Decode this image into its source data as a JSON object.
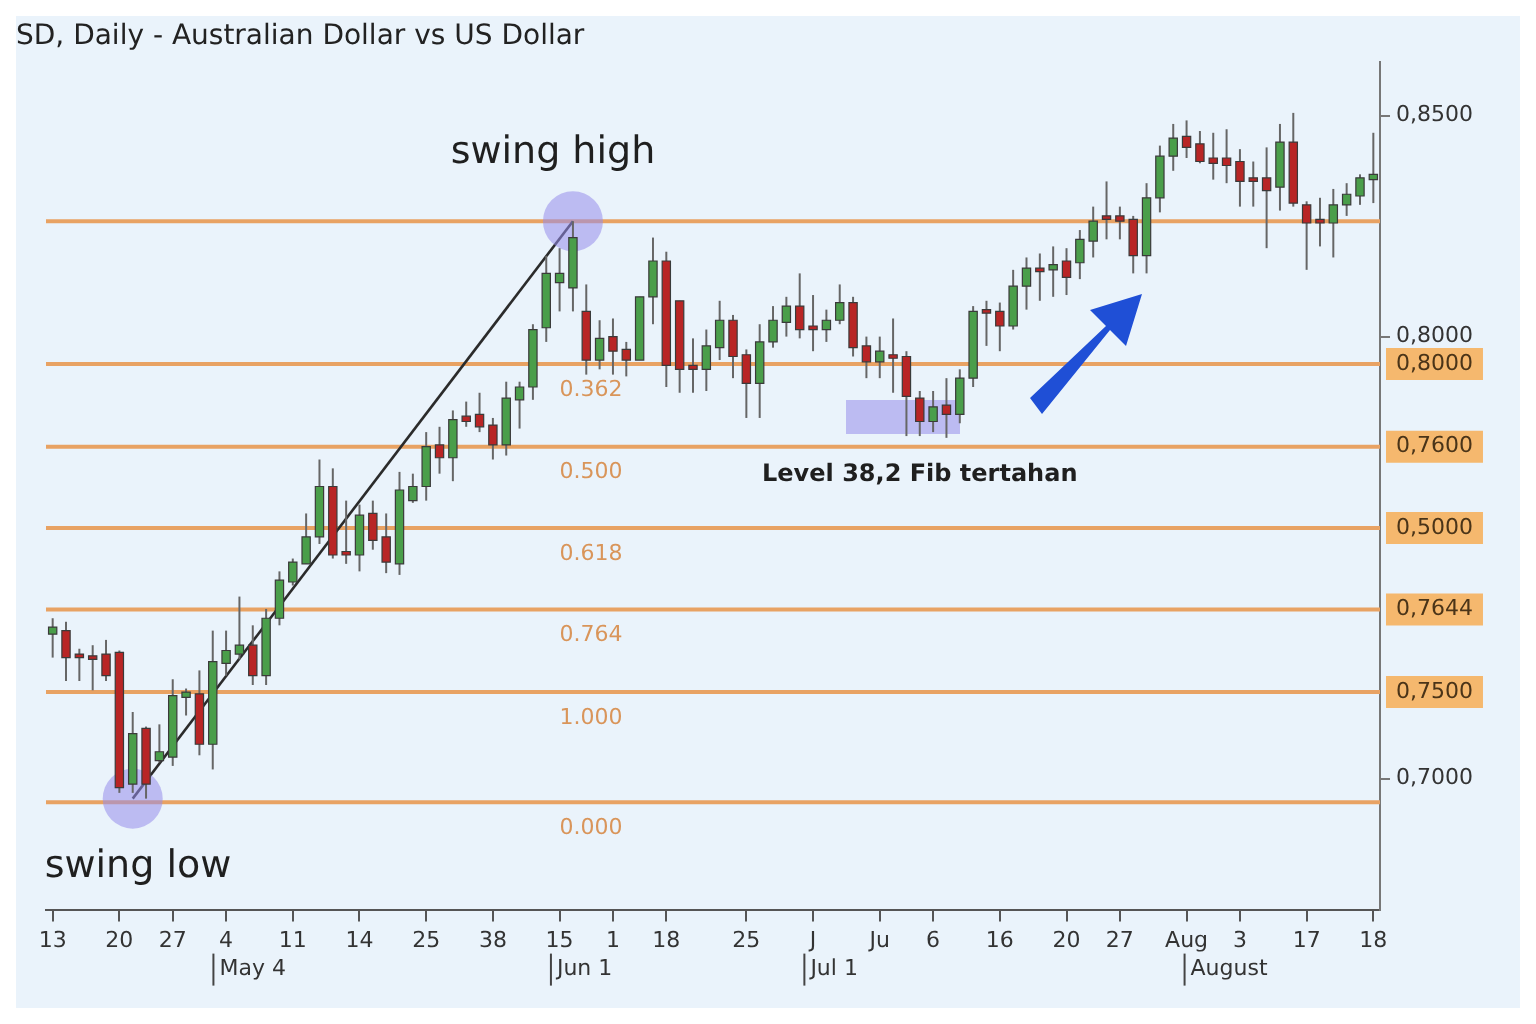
{
  "chart_data": {
    "type": "candlestick",
    "title": "SD, Daily - Australian Dollar vs US Dollar",
    "categories": [
      "13",
      null,
      null,
      null,
      null,
      "20",
      null,
      null,
      null,
      "27",
      null,
      null,
      null,
      "4",
      null,
      null,
      null,
      null,
      "11",
      null,
      null,
      null,
      null,
      "14",
      null,
      null,
      null,
      null,
      "25",
      null,
      null,
      null,
      null,
      "38",
      null,
      null,
      null,
      null,
      "15",
      null,
      null,
      null,
      "1",
      null,
      null,
      null,
      "18",
      null,
      null,
      null,
      null,
      null,
      "25",
      null,
      null,
      null,
      null,
      "J",
      null,
      null,
      null,
      null,
      "Ju",
      null,
      null,
      null,
      "6",
      null,
      null,
      null,
      null,
      "16",
      null,
      null,
      null,
      null,
      "20",
      null,
      null,
      null,
      "27",
      null,
      null,
      null,
      null,
      "Aug",
      null,
      null,
      null,
      "3",
      null,
      null,
      null,
      null,
      "17",
      null,
      null,
      null,
      null,
      "18"
    ],
    "ohlc": [
      [
        0.7327,
        0.7363,
        0.7274,
        0.7343
      ],
      [
        0.7335,
        0.7355,
        0.7221,
        0.7274
      ],
      [
        0.7282,
        0.7294,
        0.7221,
        0.7274
      ],
      [
        0.7278,
        0.7302,
        0.72,
        0.727
      ],
      [
        0.7282,
        0.7314,
        0.7221,
        0.7233
      ],
      [
        0.7286,
        0.729,
        0.6968,
        0.698
      ],
      [
        0.6988,
        0.7151,
        0.6968,
        0.7102
      ],
      [
        0.7114,
        0.7118,
        0.6955,
        0.6988
      ],
      [
        0.7041,
        0.7123,
        0.7037,
        0.7061
      ],
      [
        0.7049,
        0.7225,
        0.7029,
        0.7188
      ],
      [
        0.7184,
        0.7204,
        0.7143,
        0.7196
      ],
      [
        0.7192,
        0.7245,
        0.7053,
        0.7078
      ],
      [
        0.7078,
        0.7335,
        0.7021,
        0.7265
      ],
      [
        0.7261,
        0.7335,
        0.7233,
        0.729
      ],
      [
        0.7282,
        0.7412,
        0.727,
        0.7302
      ],
      [
        0.7302,
        0.7347,
        0.7212,
        0.7233
      ],
      [
        0.7233,
        0.7384,
        0.7212,
        0.7363
      ],
      [
        0.7363,
        0.7469,
        0.7347,
        0.7449
      ],
      [
        0.7445,
        0.7498,
        0.7437,
        0.749
      ],
      [
        0.7486,
        0.76,
        0.7486,
        0.7547
      ],
      [
        0.7547,
        0.7722,
        0.7531,
        0.7661
      ],
      [
        0.7661,
        0.7702,
        0.7498,
        0.7506
      ],
      [
        0.7514,
        0.7629,
        0.7486,
        0.7506
      ],
      [
        0.7506,
        0.762,
        0.7469,
        0.7596
      ],
      [
        0.76,
        0.7629,
        0.7518,
        0.7539
      ],
      [
        0.7547,
        0.76,
        0.7465,
        0.749
      ],
      [
        0.7486,
        0.7694,
        0.7461,
        0.7653
      ],
      [
        0.7629,
        0.769,
        0.7624,
        0.7661
      ],
      [
        0.7661,
        0.7784,
        0.7629,
        0.7751
      ],
      [
        0.7755,
        0.7796,
        0.769,
        0.7726
      ],
      [
        0.7726,
        0.7833,
        0.7673,
        0.7812
      ],
      [
        0.782,
        0.7853,
        0.7796,
        0.7808
      ],
      [
        0.7824,
        0.7873,
        0.7784,
        0.7796
      ],
      [
        0.78,
        0.7816,
        0.7722,
        0.7755
      ],
      [
        0.7755,
        0.7898,
        0.7731,
        0.7861
      ],
      [
        0.7857,
        0.7898,
        0.7792,
        0.7886
      ],
      [
        0.7886,
        0.8028,
        0.7857,
        0.8016
      ],
      [
        0.802,
        0.8183,
        0.7988,
        0.8143
      ],
      [
        0.8122,
        0.82,
        0.8057,
        0.8143
      ],
      [
        0.811,
        0.8261,
        0.8057,
        0.8224
      ],
      [
        0.8057,
        0.8118,
        0.7914,
        0.7947
      ],
      [
        0.7947,
        0.8037,
        0.7926,
        0.7996
      ],
      [
        0.8,
        0.8041,
        0.7914,
        0.7967
      ],
      [
        0.7971,
        0.7988,
        0.791,
        0.7947
      ],
      [
        0.7947,
        0.809,
        0.7947,
        0.809
      ],
      [
        0.809,
        0.8224,
        0.8028,
        0.8171
      ],
      [
        0.8171,
        0.8192,
        0.7886,
        0.7935
      ],
      [
        0.8081,
        0.8081,
        0.7873,
        0.7926
      ],
      [
        0.7935,
        0.7996,
        0.7873,
        0.7926
      ],
      [
        0.7926,
        0.8016,
        0.7877,
        0.7979
      ],
      [
        0.7975,
        0.8081,
        0.7947,
        0.8037
      ],
      [
        0.8037,
        0.8049,
        0.7906,
        0.7955
      ],
      [
        0.7959,
        0.7971,
        0.7816,
        0.7894
      ],
      [
        0.7894,
        0.8028,
        0.7816,
        0.7988
      ],
      [
        0.7988,
        0.8069,
        0.7975,
        0.8037
      ],
      [
        0.8032,
        0.809,
        0.8,
        0.8069
      ],
      [
        0.8069,
        0.8143,
        0.7996,
        0.8016
      ],
      [
        0.8024,
        0.8094,
        0.7967,
        0.8016
      ],
      [
        0.8016,
        0.8061,
        0.7988,
        0.8037
      ],
      [
        0.8037,
        0.8118,
        0.8028,
        0.8077
      ],
      [
        0.8077,
        0.809,
        0.7955,
        0.7975
      ],
      [
        0.7979,
        0.8,
        0.7906,
        0.7943
      ],
      [
        0.7943,
        0.8,
        0.7906,
        0.7967
      ],
      [
        0.7959,
        0.8041,
        0.7873,
        0.7951
      ],
      [
        0.7955,
        0.7967,
        0.7775,
        0.7865
      ],
      [
        0.7861,
        0.7877,
        0.7775,
        0.7808
      ],
      [
        0.7808,
        0.7877,
        0.7784,
        0.7841
      ],
      [
        0.7845,
        0.7906,
        0.7771,
        0.7824
      ],
      [
        0.7824,
        0.7926,
        0.7804,
        0.7906
      ],
      [
        0.7906,
        0.8069,
        0.7886,
        0.8057
      ],
      [
        0.8061,
        0.8081,
        0.7979,
        0.8053
      ],
      [
        0.8057,
        0.8077,
        0.7967,
        0.8024
      ],
      [
        0.8024,
        0.8151,
        0.8016,
        0.8114
      ],
      [
        0.8114,
        0.8179,
        0.8061,
        0.8155
      ],
      [
        0.8155,
        0.8188,
        0.8081,
        0.8147
      ],
      [
        0.8151,
        0.8204,
        0.809,
        0.8163
      ],
      [
        0.8171,
        0.82,
        0.8094,
        0.8134
      ],
      [
        0.8167,
        0.8241,
        0.813,
        0.822
      ],
      [
        0.8216,
        0.8294,
        0.8179,
        0.8261
      ],
      [
        0.8273,
        0.8351,
        0.822,
        0.8265
      ],
      [
        0.8273,
        0.8294,
        0.822,
        0.8261
      ],
      [
        0.8265,
        0.8273,
        0.8143,
        0.8183
      ],
      [
        0.8183,
        0.8347,
        0.8143,
        0.8314
      ],
      [
        0.8314,
        0.8432,
        0.8281,
        0.8408
      ],
      [
        0.8408,
        0.8481,
        0.8375,
        0.8449
      ],
      [
        0.8453,
        0.8489,
        0.8404,
        0.8428
      ],
      [
        0.8436,
        0.8465,
        0.8392,
        0.8396
      ],
      [
        0.8404,
        0.8461,
        0.8355,
        0.8392
      ],
      [
        0.8404,
        0.8469,
        0.8347,
        0.8387
      ],
      [
        0.8396,
        0.8424,
        0.8294,
        0.8351
      ],
      [
        0.8359,
        0.8396,
        0.8294,
        0.8351
      ],
      [
        0.8359,
        0.8428,
        0.82,
        0.833
      ],
      [
        0.8338,
        0.8481,
        0.8285,
        0.844
      ],
      [
        0.844,
        0.8506,
        0.8294,
        0.8302
      ],
      [
        0.8298,
        0.8306,
        0.8151,
        0.8257
      ],
      [
        0.8265,
        0.8314,
        0.8204,
        0.8257
      ],
      [
        0.8257,
        0.8334,
        0.8179,
        0.8298
      ],
      [
        0.8298,
        0.8347,
        0.8273,
        0.8322
      ],
      [
        0.8318,
        0.8367,
        0.8298,
        0.8359
      ],
      [
        0.8355,
        0.8461,
        0.8302,
        0.8367
      ]
    ],
    "colors": [
      "#4a9e4a",
      "#b82525",
      "#b82525",
      "#b82525",
      "#b82525",
      "#b82525",
      "#4a9e4a",
      "#b82525",
      "#4a9e4a",
      "#4a9e4a",
      "#4a9e4a",
      "#b82525",
      "#4a9e4a",
      "#4a9e4a",
      "#4a9e4a",
      "#b82525",
      "#4a9e4a",
      "#4a9e4a",
      "#4a9e4a",
      "#4a9e4a",
      "#4a9e4a",
      "#b82525",
      "#b82525",
      "#4a9e4a",
      "#b82525",
      "#b82525",
      "#4a9e4a",
      "#4a9e4a",
      "#4a9e4a",
      "#b82525",
      "#4a9e4a",
      "#b82525",
      "#b82525",
      "#b82525",
      "#4a9e4a",
      "#4a9e4a",
      "#4a9e4a",
      "#4a9e4a",
      "#4a9e4a",
      "#4a9e4a",
      "#b82525",
      "#4a9e4a",
      "#b82525",
      "#b82525",
      "#4a9e4a",
      "#4a9e4a",
      "#b82525",
      "#b82525",
      "#b82525",
      "#4a9e4a",
      "#4a9e4a",
      "#b82525",
      "#b82525",
      "#4a9e4a",
      "#4a9e4a",
      "#4a9e4a",
      "#b82525",
      "#b82525",
      "#4a9e4a",
      "#4a9e4a",
      "#b82525",
      "#b82525",
      "#4a9e4a",
      "#b82525",
      "#b82525",
      "#b82525",
      "#4a9e4a",
      "#b82525",
      "#4a9e4a",
      "#4a9e4a",
      "#b82525",
      "#b82525",
      "#4a9e4a",
      "#4a9e4a",
      "#b82525",
      "#4a9e4a",
      "#b82525",
      "#4a9e4a",
      "#4a9e4a",
      "#b82525",
      "#b82525",
      "#b82525",
      "#4a9e4a",
      "#4a9e4a",
      "#4a9e4a",
      "#b82525",
      "#b82525",
      "#b82525",
      "#b82525",
      "#b82525",
      "#b82525",
      "#b82525",
      "#4a9e4a",
      "#b82525",
      "#b82525",
      "#b82525",
      "#4a9e4a",
      "#4a9e4a",
      "#4a9e4a",
      "#4a9e4a"
    ],
    "series": [
      {
        "type": "line",
        "color": "#2b2b2b",
        "marker": "circle",
        "values": [
          null,
          null,
          null,
          null,
          null,
          null,
          0.6955,
          null,
          null,
          null,
          null,
          null,
          null,
          null,
          null,
          null,
          null,
          null,
          null,
          null,
          null,
          null,
          null,
          null,
          null,
          null,
          null,
          null,
          null,
          null,
          null,
          null,
          null,
          null,
          null,
          null,
          null,
          null,
          null,
          0.8261,
          null,
          null,
          null,
          null,
          null,
          null,
          null,
          null,
          null,
          null,
          null,
          null,
          null,
          null,
          null,
          null,
          null,
          null,
          null,
          null,
          null,
          null,
          null,
          null,
          null,
          null,
          null,
          null,
          null,
          null,
          null,
          null,
          null,
          null,
          null,
          null,
          null,
          null,
          null,
          null,
          null,
          null,
          null,
          null,
          null,
          null,
          null,
          null,
          null,
          null,
          null,
          null,
          null,
          null,
          null,
          null,
          null,
          null,
          null,
          null
        ]
      }
    ],
    "ylim": [
      0.6704,
      0.8622
    ],
    "yticks": [
      {
        "value": 0.85,
        "label": "0,8500"
      },
      {
        "value": 0.8,
        "label": "0,8000"
      },
      {
        "value": 0.7,
        "label": "0,7000"
      }
    ],
    "grid": false,
    "legend": false,
    "ref_lines": [
      {
        "axis": "y",
        "value": 0.8261,
        "color": "#e8a263"
      },
      {
        "axis": "y",
        "value": 0.7938,
        "color": "#e8a263"
      },
      {
        "axis": "y",
        "value": 0.7751,
        "color": "#e8a263"
      },
      {
        "axis": "y",
        "value": 0.7567,
        "color": "#e8a263"
      },
      {
        "axis": "y",
        "value": 0.7383,
        "color": "#e8a263"
      },
      {
        "axis": "y",
        "value": 0.7196,
        "color": "#e8a263"
      },
      {
        "axis": "y",
        "value": 0.6947,
        "color": "#e8a263"
      }
    ],
    "annotations": [
      "swing high",
      "swing low",
      "Level 38,2 Fib tertahan",
      "0,8000",
      "0,7600",
      "0,5000",
      "0,7644",
      "0,7500",
      "0.362",
      "0.500",
      "0.618",
      "0.764",
      "1.000",
      "0.000",
      "May 4",
      "Jun 1",
      "Jul 1",
      "August"
    ]
  }
}
